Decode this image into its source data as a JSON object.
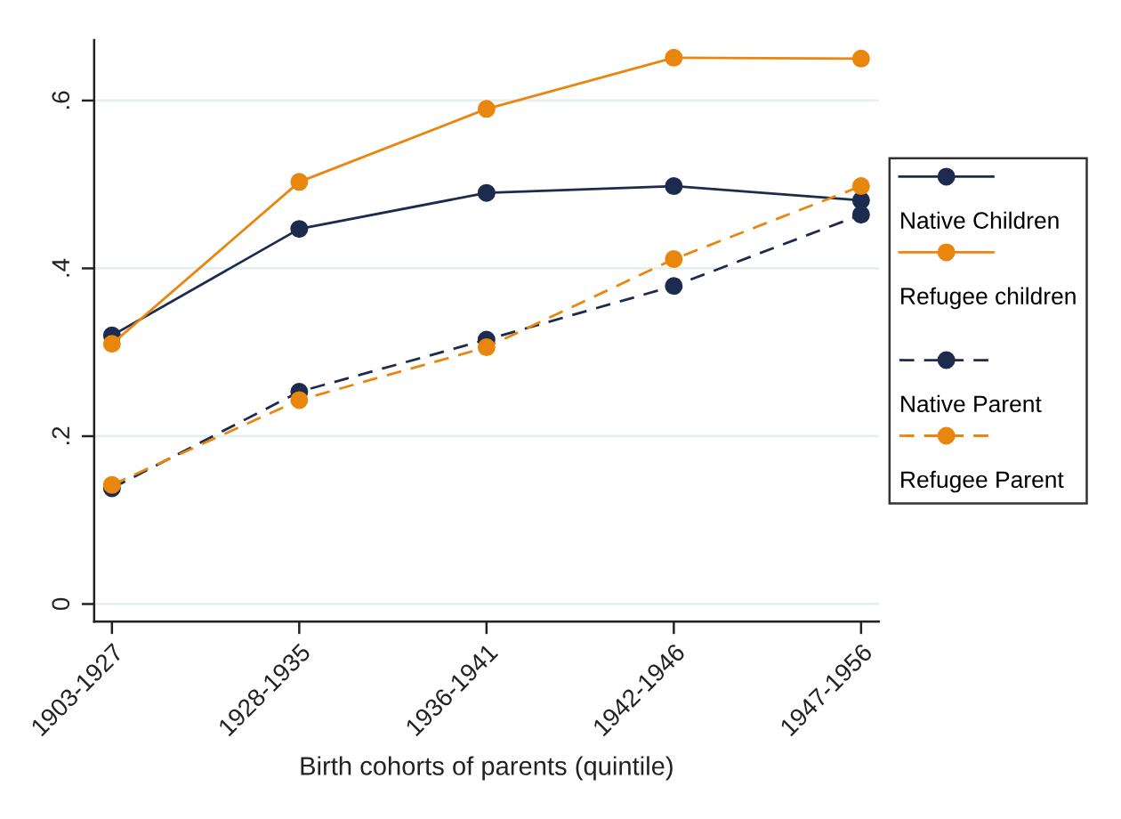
{
  "chart_data": {
    "type": "line",
    "xlabel": "Birth cohorts of parents (quintile)",
    "categories": [
      "1903-1927",
      "1928-1935",
      "1936-1941",
      "1942-1946",
      "1947-1956"
    ],
    "series": [
      {
        "name": "Native Children",
        "color": "#1d2b4f",
        "line_style": "solid",
        "values": [
          0.32,
          0.447,
          0.49,
          0.498,
          0.481
        ]
      },
      {
        "name": "Refugee children",
        "color": "#e9860d",
        "line_style": "solid",
        "values": [
          0.31,
          0.503,
          0.59,
          0.651,
          0.65
        ]
      },
      {
        "name": "Native Parent",
        "color": "#1d2b4f",
        "line_style": "dashed",
        "values": [
          0.138,
          0.253,
          0.315,
          0.379,
          0.464
        ]
      },
      {
        "name": "Refugee Parent",
        "color": "#e9860d",
        "line_style": "dashed",
        "values": [
          0.142,
          0.243,
          0.306,
          0.411,
          0.498
        ]
      }
    ],
    "ylim": [
      -0.021,
      0.672
    ],
    "yticks": [
      0,
      {
        "value": 0.2,
        "label": ".2"
      },
      {
        "value": 0.4,
        "label": ".4"
      },
      {
        "value": 0.6,
        "label": ".6"
      }
    ],
    "grid": "y",
    "legend": "right",
    "marker": "circle"
  }
}
